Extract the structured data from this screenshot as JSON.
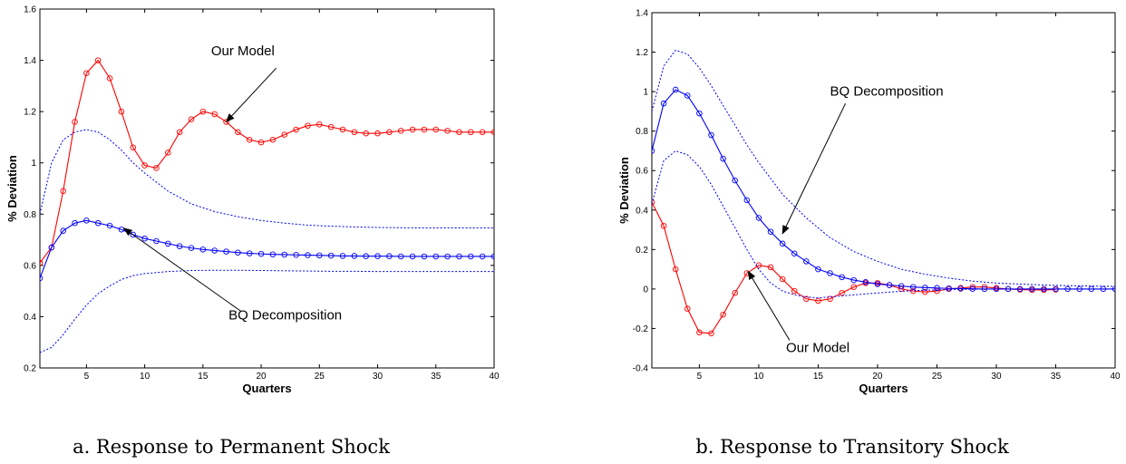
{
  "chart_data": [
    {
      "type": "line",
      "caption": "a. Response to Permanent Shock",
      "xlabel": "Quarters",
      "ylabel": "% Deviation",
      "xlim": [
        1,
        40
      ],
      "ylim": [
        0.2,
        1.6
      ],
      "xticks": [
        "5",
        "10",
        "15",
        "20",
        "25",
        "30",
        "35",
        "40"
      ],
      "yticks": [
        "0.2",
        "0.4",
        "0.6",
        "0.8",
        "1",
        "1.2",
        "1.4",
        "1.6"
      ],
      "grid": false,
      "series": [
        {
          "color": "#ff0000",
          "style": "solid-circles",
          "x": [
            1,
            2,
            3,
            4,
            5,
            6,
            7,
            8,
            9,
            10,
            11,
            12,
            13,
            14,
            15,
            16,
            17,
            18,
            19,
            20,
            21,
            22,
            23,
            24,
            25,
            26,
            27,
            28,
            29,
            30,
            31,
            32,
            33,
            34,
            35,
            36,
            37,
            38,
            39,
            40
          ],
          "values": [
            0.61,
            0.67,
            0.89,
            1.16,
            1.35,
            1.4,
            1.33,
            1.2,
            1.06,
            0.99,
            0.98,
            1.04,
            1.12,
            1.17,
            1.2,
            1.19,
            1.16,
            1.12,
            1.09,
            1.08,
            1.09,
            1.11,
            1.13,
            1.145,
            1.15,
            1.14,
            1.13,
            1.12,
            1.115,
            1.115,
            1.12,
            1.125,
            1.13,
            1.13,
            1.13,
            1.125,
            1.12,
            1.12,
            1.12,
            1.12
          ]
        },
        {
          "color": "#0000ff",
          "style": "solid-circles",
          "x": [
            1,
            2,
            3,
            4,
            5,
            6,
            7,
            8,
            9,
            10,
            11,
            12,
            13,
            14,
            15,
            16,
            17,
            18,
            19,
            20,
            21,
            22,
            23,
            24,
            25,
            26,
            27,
            28,
            29,
            30,
            31,
            32,
            33,
            34,
            35,
            36,
            37,
            38,
            39,
            40
          ],
          "values": [
            0.55,
            0.67,
            0.735,
            0.765,
            0.775,
            0.765,
            0.755,
            0.74,
            0.72,
            0.705,
            0.695,
            0.685,
            0.675,
            0.668,
            0.662,
            0.658,
            0.654,
            0.65,
            0.647,
            0.645,
            0.643,
            0.642,
            0.641,
            0.64,
            0.639,
            0.638,
            0.637,
            0.637,
            0.636,
            0.636,
            0.636,
            0.635,
            0.635,
            0.635,
            0.635,
            0.635,
            0.635,
            0.635,
            0.635,
            0.635
          ]
        },
        {
          "color": "#0000ff",
          "style": "dotted",
          "x": [
            1,
            2,
            3,
            4,
            5,
            6,
            7,
            8,
            9,
            10,
            12,
            14,
            16,
            18,
            20,
            22,
            24,
            26,
            28,
            30,
            32,
            34,
            36,
            38,
            40
          ],
          "values": [
            0.8,
            1.0,
            1.09,
            1.12,
            1.13,
            1.12,
            1.09,
            1.05,
            1.0,
            0.96,
            0.89,
            0.84,
            0.81,
            0.79,
            0.775,
            0.765,
            0.757,
            0.753,
            0.75,
            0.748,
            0.747,
            0.746,
            0.746,
            0.746,
            0.746
          ]
        },
        {
          "color": "#0000ff",
          "style": "dotted",
          "x": [
            1,
            2,
            3,
            4,
            5,
            6,
            7,
            8,
            9,
            10,
            12,
            14,
            16,
            18,
            20,
            22,
            24,
            26,
            28,
            30,
            32,
            34,
            36,
            38,
            40
          ],
          "values": [
            0.26,
            0.28,
            0.33,
            0.39,
            0.445,
            0.49,
            0.52,
            0.545,
            0.56,
            0.568,
            0.576,
            0.58,
            0.581,
            0.581,
            0.58,
            0.579,
            0.578,
            0.577,
            0.577,
            0.576,
            0.576,
            0.576,
            0.576,
            0.576,
            0.576
          ]
        }
      ],
      "annotations": [
        {
          "text": "Our Model",
          "x": 15.7,
          "y": 1.42,
          "anchor": "start",
          "arrow_to": [
            17,
            1.16
          ],
          "arrow_from": [
            21.3,
            1.37
          ]
        },
        {
          "text": "BQ Decomposition",
          "x": 17.2,
          "y": 0.39,
          "anchor": "start",
          "arrow_to": [
            8.2,
            0.745
          ],
          "arrow_from": [
            18.3,
            0.42
          ]
        }
      ]
    },
    {
      "type": "line",
      "caption": "b. Response to Transitory Shock",
      "xlabel": "Quarters",
      "ylabel": "% Deviation",
      "xlim": [
        1,
        40
      ],
      "ylim": [
        -0.4,
        1.4
      ],
      "xticks": [
        "5",
        "10",
        "15",
        "20",
        "25",
        "30",
        "35",
        "40"
      ],
      "yticks": [
        "-0.4",
        "-0.2",
        "0",
        "0.2",
        "0.4",
        "0.6",
        "0.8",
        "1",
        "1.2",
        "1.4"
      ],
      "grid": false,
      "series": [
        {
          "color": "#ff0000",
          "style": "solid-circles",
          "x": [
            1,
            2,
            3,
            4,
            5,
            6,
            7,
            8,
            9,
            10,
            11,
            12,
            13,
            14,
            15,
            16,
            17,
            18,
            19,
            20,
            21,
            22,
            23,
            24,
            25,
            26,
            27,
            28,
            29,
            30,
            31,
            32,
            33,
            34,
            35
          ],
          "values": [
            0.44,
            0.32,
            0.1,
            -0.1,
            -0.22,
            -0.225,
            -0.13,
            -0.02,
            0.08,
            0.12,
            0.11,
            0.05,
            -0.01,
            -0.05,
            -0.06,
            -0.05,
            -0.02,
            0.01,
            0.03,
            0.03,
            0.02,
            0.0,
            -0.01,
            -0.015,
            -0.01,
            0.0,
            0.005,
            0.01,
            0.01,
            0.005,
            0.0,
            -0.003,
            -0.005,
            -0.005,
            -0.003
          ]
        },
        {
          "color": "#0000ff",
          "style": "solid-circles",
          "x": [
            1,
            2,
            3,
            4,
            5,
            6,
            7,
            8,
            9,
            10,
            11,
            12,
            13,
            14,
            15,
            16,
            17,
            18,
            19,
            20,
            21,
            22,
            23,
            24,
            25,
            26,
            27,
            28,
            29,
            30,
            31,
            32,
            33,
            34,
            35,
            36,
            37,
            38,
            39,
            40
          ],
          "values": [
            0.7,
            0.94,
            1.01,
            0.98,
            0.89,
            0.78,
            0.66,
            0.55,
            0.45,
            0.36,
            0.29,
            0.23,
            0.18,
            0.14,
            0.1,
            0.08,
            0.06,
            0.045,
            0.035,
            0.025,
            0.02,
            0.015,
            0.01,
            0.007,
            0.005,
            0.003,
            0.002,
            0.001,
            0.0,
            0.0,
            0.0,
            0.0,
            0.0,
            0.0,
            0.0,
            0.0,
            0.0,
            0.0,
            0.0,
            0.0
          ]
        },
        {
          "color": "#0000ff",
          "style": "dotted",
          "x": [
            1,
            2,
            3,
            4,
            5,
            6,
            7,
            8,
            9,
            10,
            12,
            14,
            16,
            18,
            20,
            22,
            24,
            26,
            28,
            30,
            32,
            34,
            36,
            38,
            40
          ],
          "values": [
            0.9,
            1.13,
            1.21,
            1.19,
            1.12,
            1.03,
            0.93,
            0.83,
            0.73,
            0.64,
            0.48,
            0.36,
            0.26,
            0.19,
            0.14,
            0.1,
            0.075,
            0.055,
            0.04,
            0.03,
            0.025,
            0.02,
            0.017,
            0.015,
            0.013
          ]
        },
        {
          "color": "#0000ff",
          "style": "dotted",
          "x": [
            1,
            2,
            3,
            4,
            5,
            6,
            7,
            8,
            9,
            10,
            11,
            12,
            13,
            14,
            15,
            16,
            18,
            20,
            22,
            24,
            26,
            28,
            30,
            32,
            34,
            36,
            38,
            40
          ],
          "values": [
            0.43,
            0.65,
            0.7,
            0.68,
            0.62,
            0.53,
            0.42,
            0.31,
            0.2,
            0.1,
            0.03,
            -0.01,
            -0.03,
            -0.04,
            -0.045,
            -0.04,
            -0.03,
            -0.02,
            -0.012,
            -0.006,
            -0.003,
            -0.001,
            0.0,
            0.0,
            0.0,
            0.0,
            0.0,
            0.0
          ]
        }
      ],
      "annotations": [
        {
          "text": "BQ Decomposition",
          "x": 16.0,
          "y": 0.98,
          "anchor": "start",
          "arrow_to": [
            12,
            0.28
          ],
          "arrow_from": [
            17.3,
            0.94
          ]
        },
        {
          "text": "Our Model",
          "x": 12.3,
          "y": -0.32,
          "anchor": "start",
          "arrow_to": [
            9.1,
            0.09
          ],
          "arrow_from": [
            12.6,
            -0.26
          ]
        }
      ]
    }
  ]
}
